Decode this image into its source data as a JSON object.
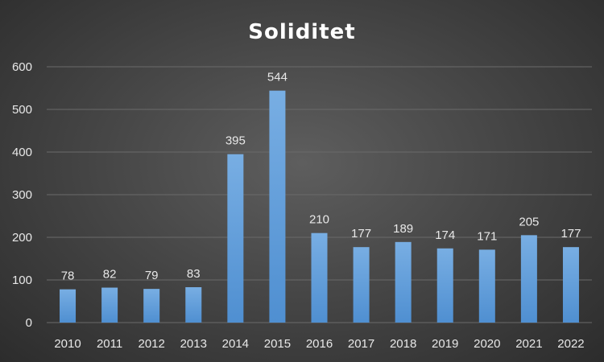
{
  "chart_data": {
    "type": "bar",
    "title": "Soliditet",
    "xlabel": "",
    "ylabel": "",
    "categories": [
      "2010",
      "2011",
      "2012",
      "2013",
      "2014",
      "2015",
      "2016",
      "2017",
      "2018",
      "2019",
      "2020",
      "2021",
      "2022"
    ],
    "values": [
      78,
      82,
      79,
      83,
      395,
      544,
      210,
      177,
      189,
      174,
      171,
      205,
      177
    ],
    "ylim": [
      0,
      600
    ],
    "yticks": [
      0,
      100,
      200,
      300,
      400,
      500,
      600
    ],
    "grid": true,
    "legend": "none",
    "colors": {
      "bar_top": "#78aee3",
      "bar_bottom": "#4f8fd1",
      "grid": "#6a6a6a"
    }
  }
}
